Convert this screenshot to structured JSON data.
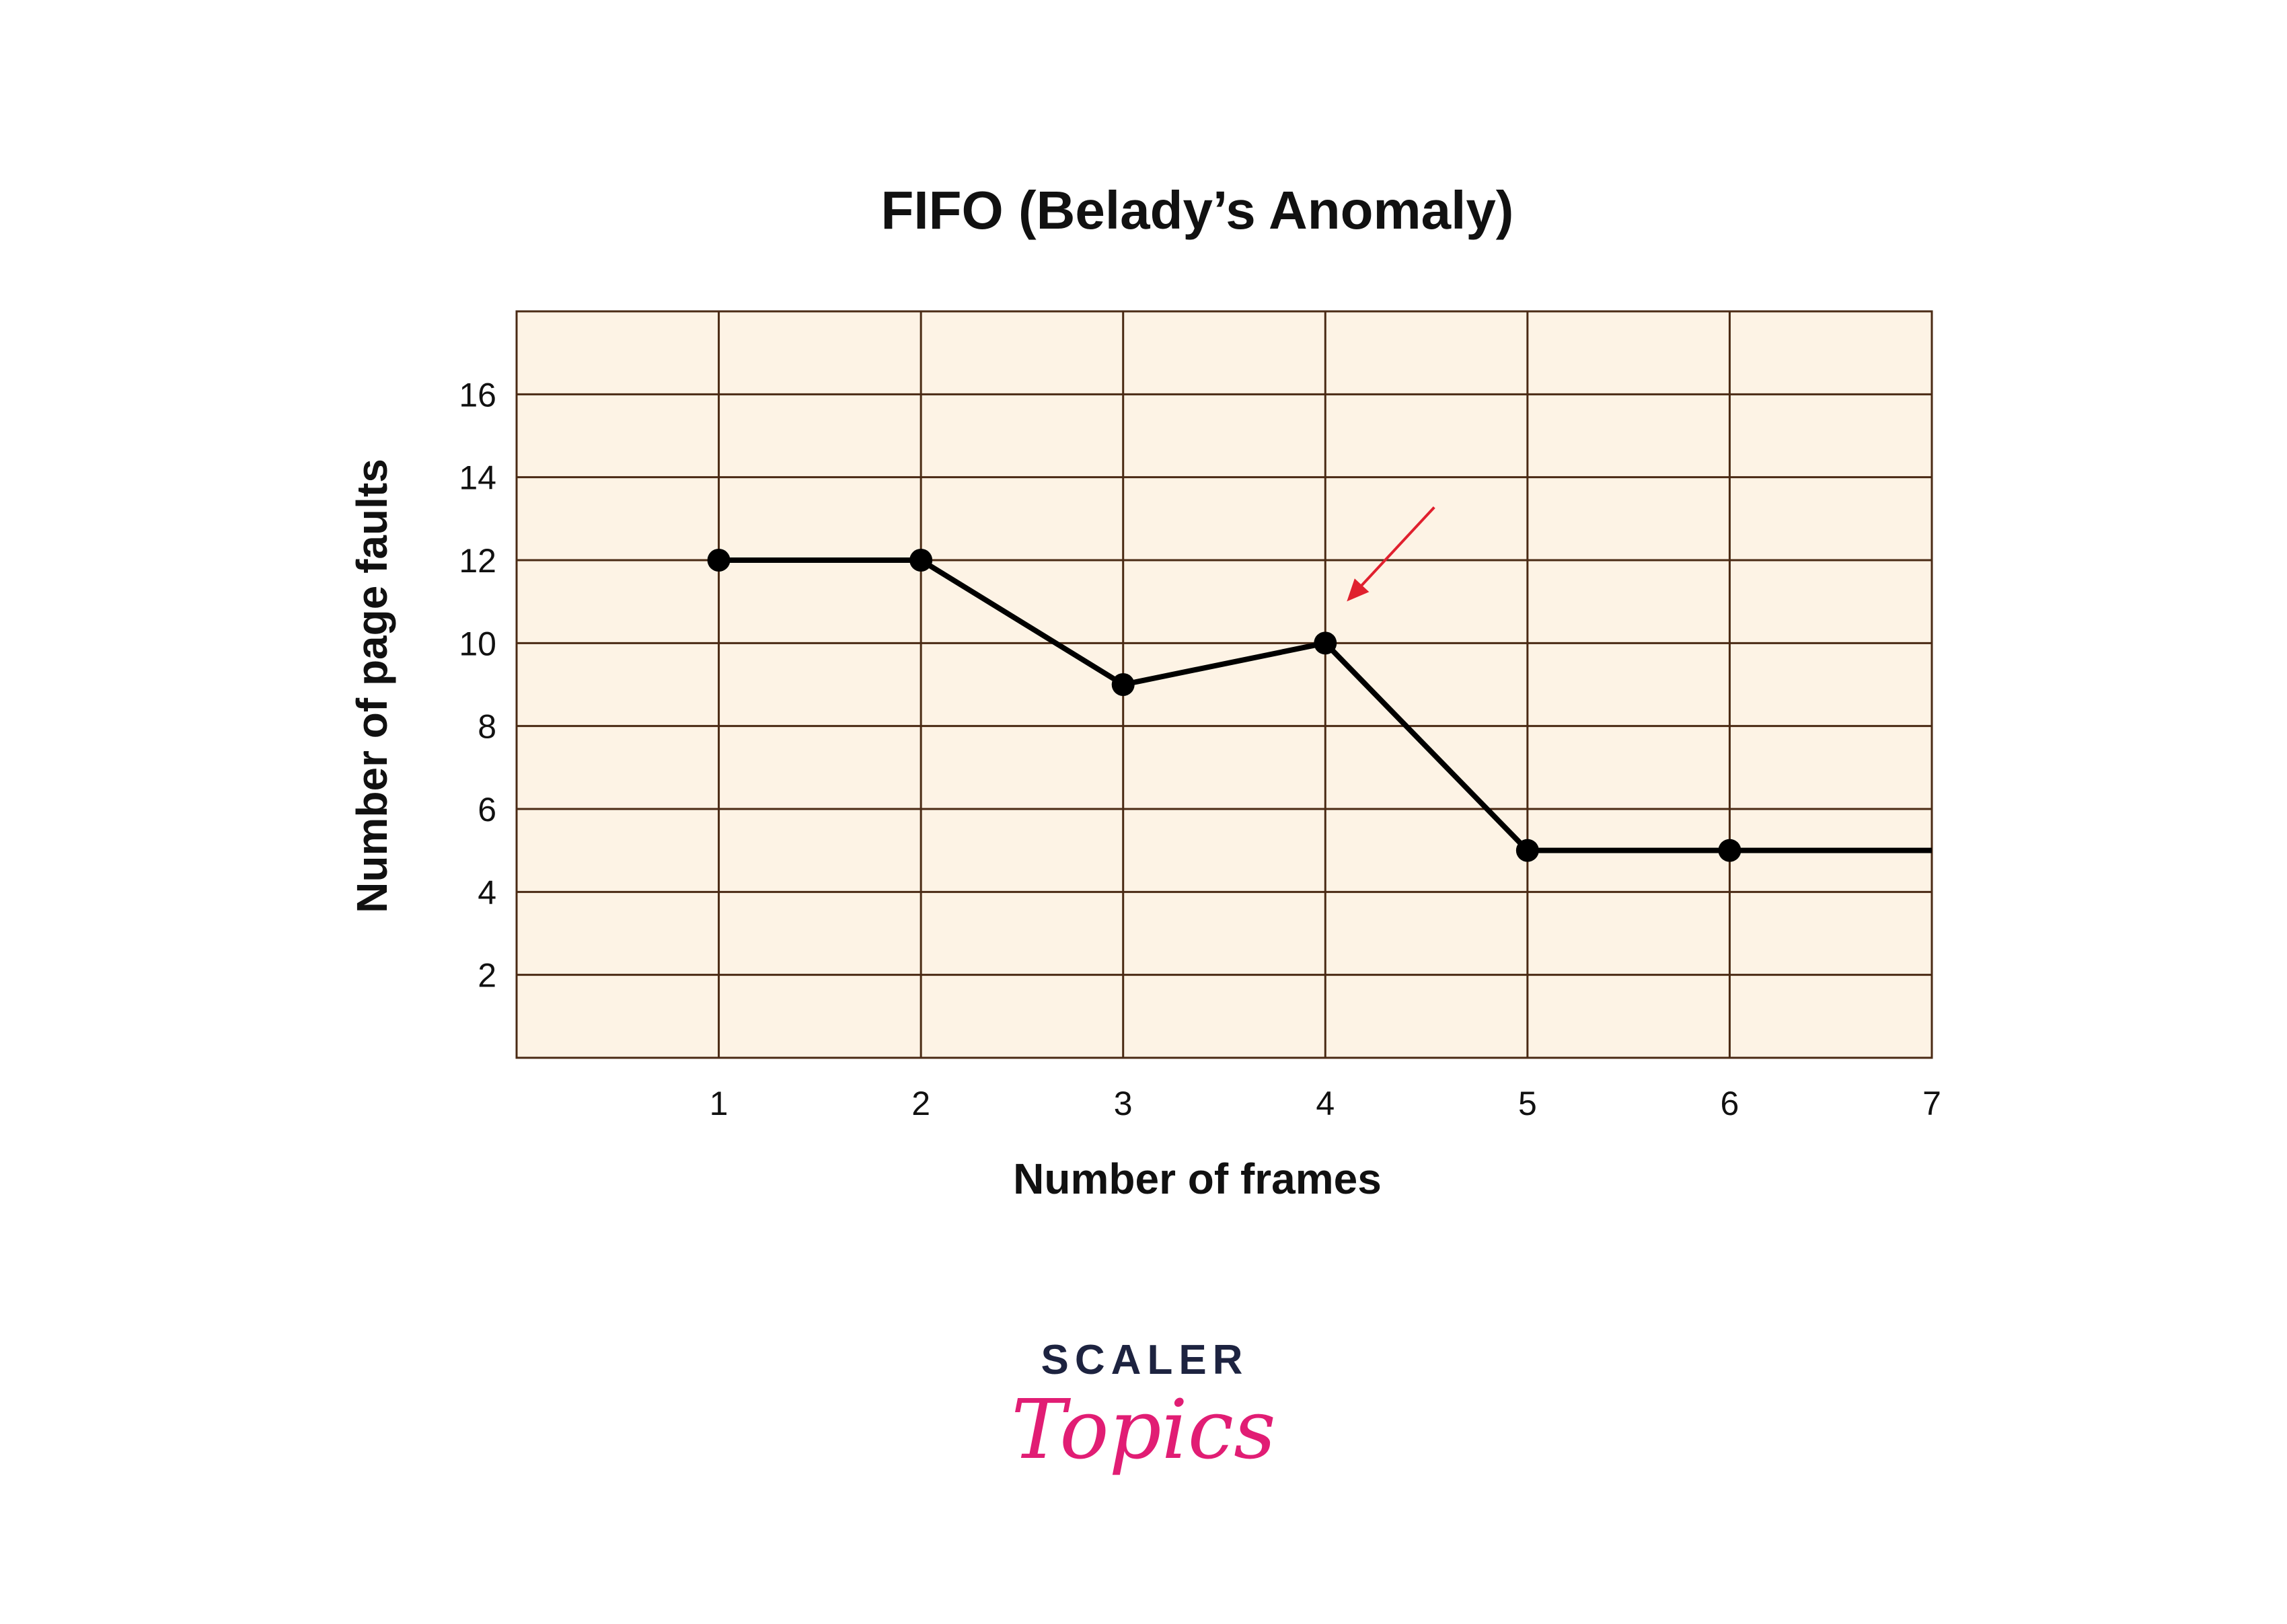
{
  "chart_data": {
    "type": "line",
    "title": "FIFO (Belady’s Anomaly)",
    "xlabel": "Number of frames",
    "ylabel": "Number of page faults",
    "xlim": [
      0,
      7
    ],
    "ylim": [
      0,
      18
    ],
    "x_ticks": [
      1,
      2,
      3,
      4,
      5,
      6,
      7
    ],
    "y_ticks": [
      2,
      4,
      6,
      8,
      10,
      12,
      14,
      16
    ],
    "grid": true,
    "series": [
      {
        "x": [
          1,
          2,
          3,
          4,
          5,
          6
        ],
        "y": [
          12,
          12,
          9,
          10,
          5,
          5
        ],
        "line_to_x": 7,
        "color": "#000000"
      }
    ],
    "annotations": [
      {
        "type": "arrow",
        "points_to": {
          "x": 4,
          "y": 10
        },
        "color": "#e0202e"
      }
    ],
    "plot_background": "#fdf3e5",
    "grid_color": "#4a2a14"
  },
  "logo": {
    "word": "SCALER",
    "script": "Topics",
    "word_color": "#1d2340",
    "script_color": "#e11d74"
  }
}
